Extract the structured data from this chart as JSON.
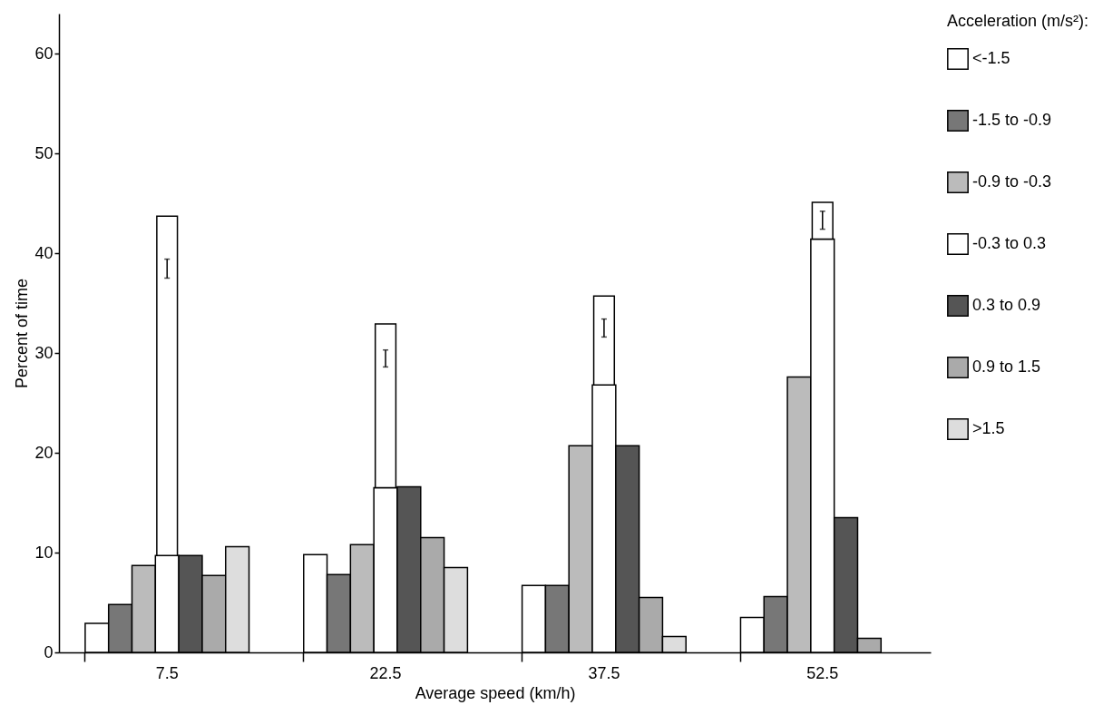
{
  "chart_data": {
    "type": "bar",
    "xlabel": "Average speed (km/h)",
    "ylabel": "Percent of time",
    "legend_title": "Acceleration (m/s²):",
    "categories": [
      "7.5",
      "22.5",
      "37.5",
      "52.5"
    ],
    "ylim": [
      0,
      64
    ],
    "yticks": [
      0,
      10,
      20,
      30,
      40,
      50,
      60
    ],
    "grid": false,
    "legend": "right",
    "series": [
      {
        "name": "<-1.5",
        "color": "#ffffff",
        "values": [
          2.9,
          9.8,
          6.7,
          3.5
        ]
      },
      {
        "name": "-1.5 to -0.9",
        "color": "#777777",
        "values": [
          4.8,
          7.8,
          6.7,
          5.6
        ]
      },
      {
        "name": "-0.9 to -0.3",
        "color": "#bbbbbb",
        "values": [
          8.7,
          10.8,
          20.7,
          27.6
        ]
      },
      {
        "name": "-0.3 to 0.3",
        "color": "#ffffff",
        "values": [
          9.7,
          16.5,
          26.8,
          41.4
        ]
      },
      {
        "color": "#ffffff",
        "base": [
          9.7,
          16.5,
          26.8,
          41.4
        ],
        "values": [
          34.0,
          16.4,
          8.9,
          3.7
        ],
        "errors": [
          [
            37.5,
            39.4
          ],
          [
            28.6,
            30.3
          ],
          [
            31.6,
            33.4
          ],
          [
            42.4,
            44.2
          ]
        ]
      },
      {
        "name": "0.3 to 0.9",
        "color": "#555555",
        "values": [
          9.7,
          16.6,
          20.7,
          13.5
        ]
      },
      {
        "name": "0.9 to 1.5",
        "color": "#aaaaaa",
        "values": [
          7.7,
          11.5,
          5.5,
          1.4
        ]
      },
      {
        "name": ">1.5",
        "color": "#dddddd",
        "values": [
          10.6,
          8.5,
          1.6,
          null
        ]
      }
    ]
  }
}
